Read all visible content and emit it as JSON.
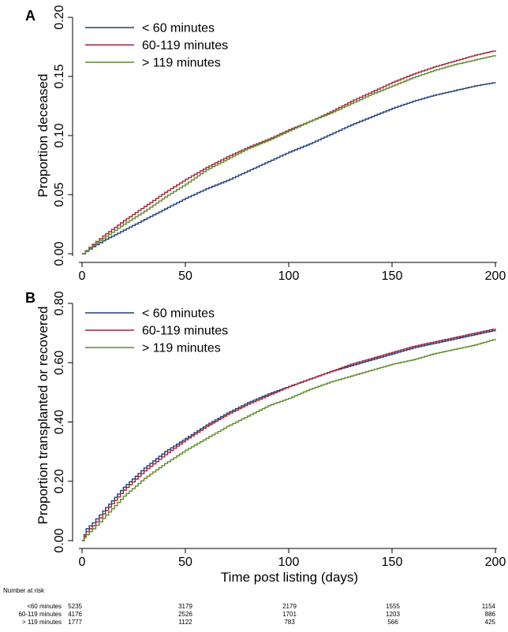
{
  "chart_data": [
    {
      "type": "line",
      "panel_label": "A",
      "ylabel": "Proportion deceased",
      "xlabel": "",
      "xlim": [
        0,
        200
      ],
      "ylim": [
        0,
        0.2
      ],
      "x_ticks": [
        "0",
        "50",
        "100",
        "150",
        "200"
      ],
      "y_ticks": [
        "0.00",
        "0.05",
        "0.10",
        "0.15",
        "0.20"
      ],
      "legend_position": "top-left",
      "x": [
        0,
        5,
        10,
        20,
        30,
        40,
        50,
        60,
        70,
        80,
        90,
        100,
        110,
        120,
        130,
        140,
        150,
        160,
        170,
        180,
        190,
        200
      ],
      "series": [
        {
          "name": "< 60 minutes",
          "color": "#1f3d7a",
          "values": [
            0,
            0.006,
            0.011,
            0.02,
            0.029,
            0.038,
            0.047,
            0.055,
            0.062,
            0.07,
            0.078,
            0.086,
            0.093,
            0.101,
            0.109,
            0.116,
            0.123,
            0.129,
            0.134,
            0.138,
            0.142,
            0.145
          ]
        },
        {
          "name": "60-119 minutes",
          "color": "#a0243a",
          "values": [
            0,
            0.008,
            0.015,
            0.028,
            0.04,
            0.052,
            0.063,
            0.073,
            0.082,
            0.09,
            0.097,
            0.105,
            0.112,
            0.12,
            0.129,
            0.137,
            0.145,
            0.152,
            0.158,
            0.163,
            0.168,
            0.172
          ]
        },
        {
          "name": "> 119 minutes",
          "color": "#5e8a2a",
          "values": [
            0,
            0.007,
            0.013,
            0.025,
            0.036,
            0.048,
            0.059,
            0.071,
            0.08,
            0.089,
            0.096,
            0.104,
            0.112,
            0.119,
            0.127,
            0.135,
            0.142,
            0.149,
            0.155,
            0.16,
            0.164,
            0.168
          ]
        }
      ]
    },
    {
      "type": "line",
      "panel_label": "B",
      "ylabel": "Proportion transplanted or recovered",
      "xlabel": "Time post listing (days)",
      "xlim": [
        0,
        200
      ],
      "ylim": [
        0,
        0.8
      ],
      "x_ticks": [
        "0",
        "50",
        "100",
        "150",
        "200"
      ],
      "y_ticks": [
        "0.00",
        "0.20",
        "0.40",
        "0.60",
        "0.80"
      ],
      "legend_position": "top-left",
      "x": [
        0,
        2,
        5,
        10,
        20,
        30,
        40,
        50,
        60,
        70,
        80,
        90,
        100,
        110,
        120,
        130,
        140,
        150,
        160,
        170,
        180,
        190,
        200
      ],
      "series": [
        {
          "name": "< 60 minutes",
          "color": "#1f3d7a",
          "values": [
            0,
            0.04,
            0.06,
            0.1,
            0.18,
            0.245,
            0.3,
            0.345,
            0.39,
            0.43,
            0.465,
            0.495,
            0.52,
            0.545,
            0.57,
            0.59,
            0.61,
            0.63,
            0.65,
            0.665,
            0.68,
            0.695,
            0.71
          ]
        },
        {
          "name": "60-119 minutes",
          "color": "#a0243a",
          "values": [
            0,
            0.03,
            0.05,
            0.09,
            0.17,
            0.235,
            0.29,
            0.34,
            0.385,
            0.425,
            0.46,
            0.49,
            0.52,
            0.545,
            0.57,
            0.595,
            0.615,
            0.635,
            0.655,
            0.67,
            0.685,
            0.7,
            0.715
          ]
        },
        {
          "name": "> 119 minutes",
          "color": "#5e8a2a",
          "values": [
            0,
            0.02,
            0.04,
            0.075,
            0.15,
            0.21,
            0.26,
            0.305,
            0.345,
            0.385,
            0.42,
            0.455,
            0.48,
            0.51,
            0.535,
            0.555,
            0.575,
            0.595,
            0.61,
            0.63,
            0.645,
            0.66,
            0.68
          ]
        }
      ]
    }
  ],
  "risk_table": {
    "title": "Number at risk",
    "rows": [
      {
        "label": "<60 minutes",
        "values": [
          "5235",
          "3179",
          "2179",
          "1555",
          "1154"
        ]
      },
      {
        "label": "60-119 minutes",
        "values": [
          "4176",
          "2526",
          "1701",
          "1203",
          "886"
        ]
      },
      {
        "label": "> 119 minutes",
        "values": [
          "1777",
          "1122",
          "783",
          "566",
          "425"
        ]
      }
    ]
  }
}
